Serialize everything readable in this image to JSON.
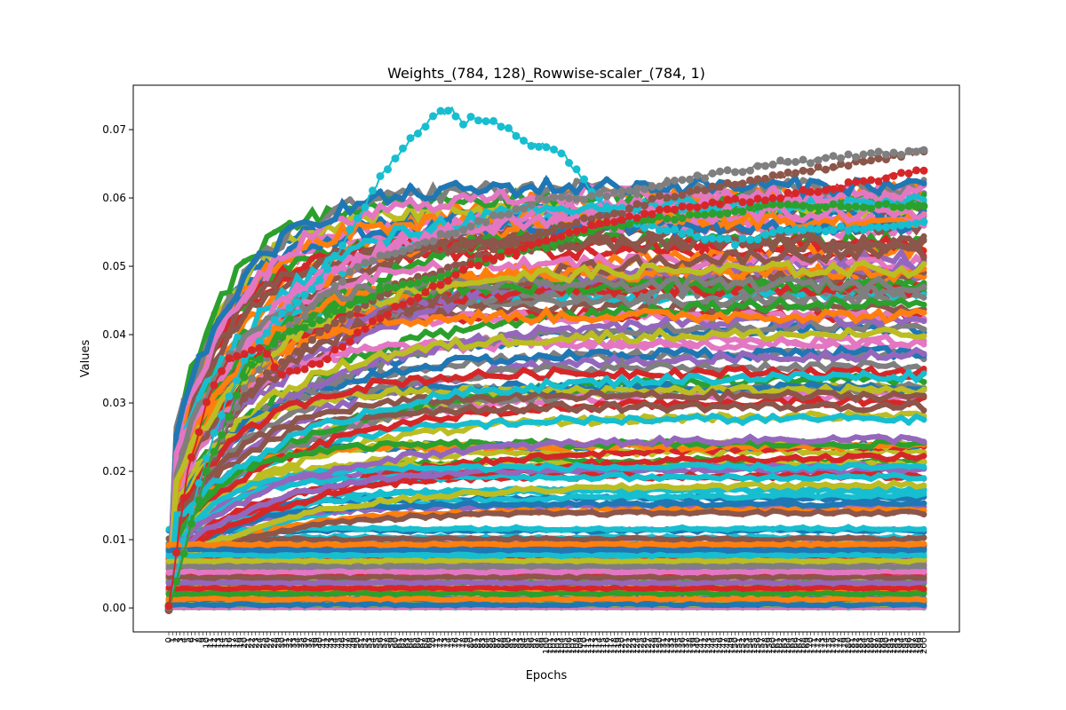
{
  "chart_data": {
    "type": "line",
    "title": "Weights_(784, 128)_Rowwise-scaler_(784, 1)",
    "xlabel": "Epochs",
    "ylabel": "Values",
    "xlim": [
      0,
      200
    ],
    "ylim": [
      -0.0035,
      0.0765
    ],
    "x_ticks_step": 1,
    "y_ticks": [
      0.0,
      0.01,
      0.02,
      0.03,
      0.04,
      0.05,
      0.06,
      0.07
    ],
    "y_tick_labels": [
      "0.00",
      "0.01",
      "0.02",
      "0.03",
      "0.04",
      "0.05",
      "0.06",
      "0.07"
    ],
    "markers": true,
    "grid": false,
    "legend": "none",
    "colors": [
      "#1f77b4",
      "#ff7f0e",
      "#2ca02c",
      "#d62728",
      "#9467bd",
      "#8c564b",
      "#e377c2",
      "#7f7f7f",
      "#bcbd22",
      "#17becf"
    ],
    "series_count": 784,
    "highlighted_series": [
      {
        "color": "#17becf",
        "x": [
          0,
          5,
          10,
          15,
          20,
          25,
          30,
          35,
          40,
          45,
          50,
          55,
          60,
          65,
          70,
          75,
          78,
          80,
          85,
          90,
          95,
          100,
          105,
          110,
          115,
          120,
          125,
          130,
          135,
          140,
          145,
          150,
          155,
          160,
          170,
          180,
          190,
          200
        ],
        "values": [
          0.0,
          0.012,
          0.022,
          0.03,
          0.036,
          0.04,
          0.043,
          0.045,
          0.048,
          0.052,
          0.057,
          0.062,
          0.066,
          0.069,
          0.072,
          0.073,
          0.071,
          0.0715,
          0.0712,
          0.07,
          0.068,
          0.0675,
          0.066,
          0.0625,
          0.059,
          0.0575,
          0.056,
          0.0555,
          0.055,
          0.0545,
          0.054,
          0.0535,
          0.054,
          0.055,
          0.0555,
          0.0555,
          0.056,
          0.0565
        ]
      },
      {
        "color": "#8c564b",
        "x": [
          0,
          10,
          20,
          30,
          40,
          50,
          60,
          70,
          80,
          90,
          100,
          110,
          120,
          130,
          140,
          150,
          160,
          170,
          180,
          190,
          200
        ],
        "values": [
          0.0,
          0.02,
          0.031,
          0.036,
          0.04,
          0.044,
          0.047,
          0.049,
          0.051,
          0.053,
          0.055,
          0.057,
          0.058,
          0.06,
          0.061,
          0.062,
          0.063,
          0.064,
          0.065,
          0.066,
          0.0668
        ]
      },
      {
        "color": "#7f7f7f",
        "x": [
          0,
          10,
          20,
          30,
          40,
          50,
          60,
          70,
          80,
          90,
          100,
          110,
          120,
          130,
          140,
          150,
          160,
          170,
          180,
          190,
          200
        ],
        "values": [
          0.0,
          0.02,
          0.032,
          0.04,
          0.045,
          0.05,
          0.052,
          0.054,
          0.056,
          0.058,
          0.06,
          0.06,
          0.061,
          0.062,
          0.063,
          0.064,
          0.065,
          0.0655,
          0.066,
          0.0665,
          0.067
        ]
      },
      {
        "color": "#2ca02c",
        "x": [
          0,
          10,
          20,
          30,
          40,
          50,
          60,
          70,
          80,
          90,
          100,
          110,
          120,
          130,
          140,
          150,
          160,
          170,
          180,
          190,
          200
        ],
        "values": [
          0.0,
          0.02,
          0.034,
          0.04,
          0.042,
          0.045,
          0.047,
          0.048,
          0.05,
          0.052,
          0.053,
          0.055,
          0.056,
          0.057,
          0.0575,
          0.058,
          0.0588,
          0.0588,
          0.0588,
          0.0588,
          0.0588
        ]
      },
      {
        "color": "#d62728",
        "x": [
          0,
          5,
          10,
          15,
          20,
          25,
          30,
          40,
          50,
          60,
          70,
          80,
          90,
          100,
          120,
          140,
          160,
          180,
          200
        ],
        "values": [
          0.0,
          0.02,
          0.03,
          0.036,
          0.037,
          0.038,
          0.034,
          0.036,
          0.04,
          0.044,
          0.047,
          0.05,
          0.052,
          0.054,
          0.057,
          0.059,
          0.06,
          0.062,
          0.064
        ]
      }
    ]
  }
}
